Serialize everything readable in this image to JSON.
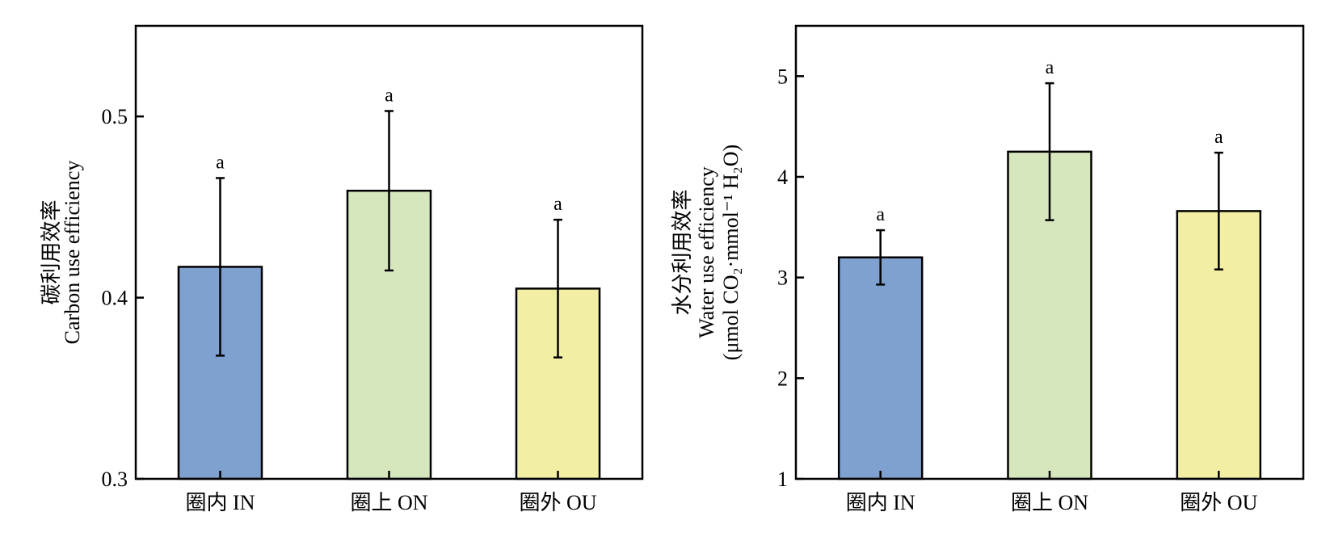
{
  "chart_data": [
    {
      "type": "bar",
      "categories": [
        "圈内 IN",
        "圈上 ON",
        "圈外 OU"
      ],
      "values": [
        0.417,
        0.459,
        0.405
      ],
      "errors": [
        0.049,
        0.044,
        0.038
      ],
      "significance": [
        "a",
        "a",
        "a"
      ],
      "colors": [
        "#7fa1d0",
        "#d6e6bd",
        "#f2efa4"
      ],
      "ylabel_lines": [
        "碳利用效率",
        "Carbon use efficiency"
      ],
      "ylim": [
        0.3,
        0.55
      ],
      "yticks": [
        0.3,
        0.4,
        0.5
      ],
      "ytick_labels": [
        "0.3",
        "0.4",
        "0.5"
      ]
    },
    {
      "type": "bar",
      "categories": [
        "圈内 IN",
        "圈上 ON",
        "圈外 OU"
      ],
      "values": [
        3.2,
        4.25,
        3.66
      ],
      "errors": [
        0.27,
        0.68,
        0.58
      ],
      "significance": [
        "a",
        "a",
        "a"
      ],
      "colors": [
        "#7fa1d0",
        "#d6e6bd",
        "#f2efa4"
      ],
      "ylabel_lines": [
        "水分利用效率",
        "Water use efficiency",
        "(μmol CO₂·mmol⁻¹ H₂O)"
      ],
      "ylim": [
        1,
        5.5
      ],
      "yticks": [
        1,
        2,
        3,
        4,
        5
      ],
      "ytick_labels": [
        "1",
        "2",
        "3",
        "4",
        "5"
      ]
    }
  ]
}
